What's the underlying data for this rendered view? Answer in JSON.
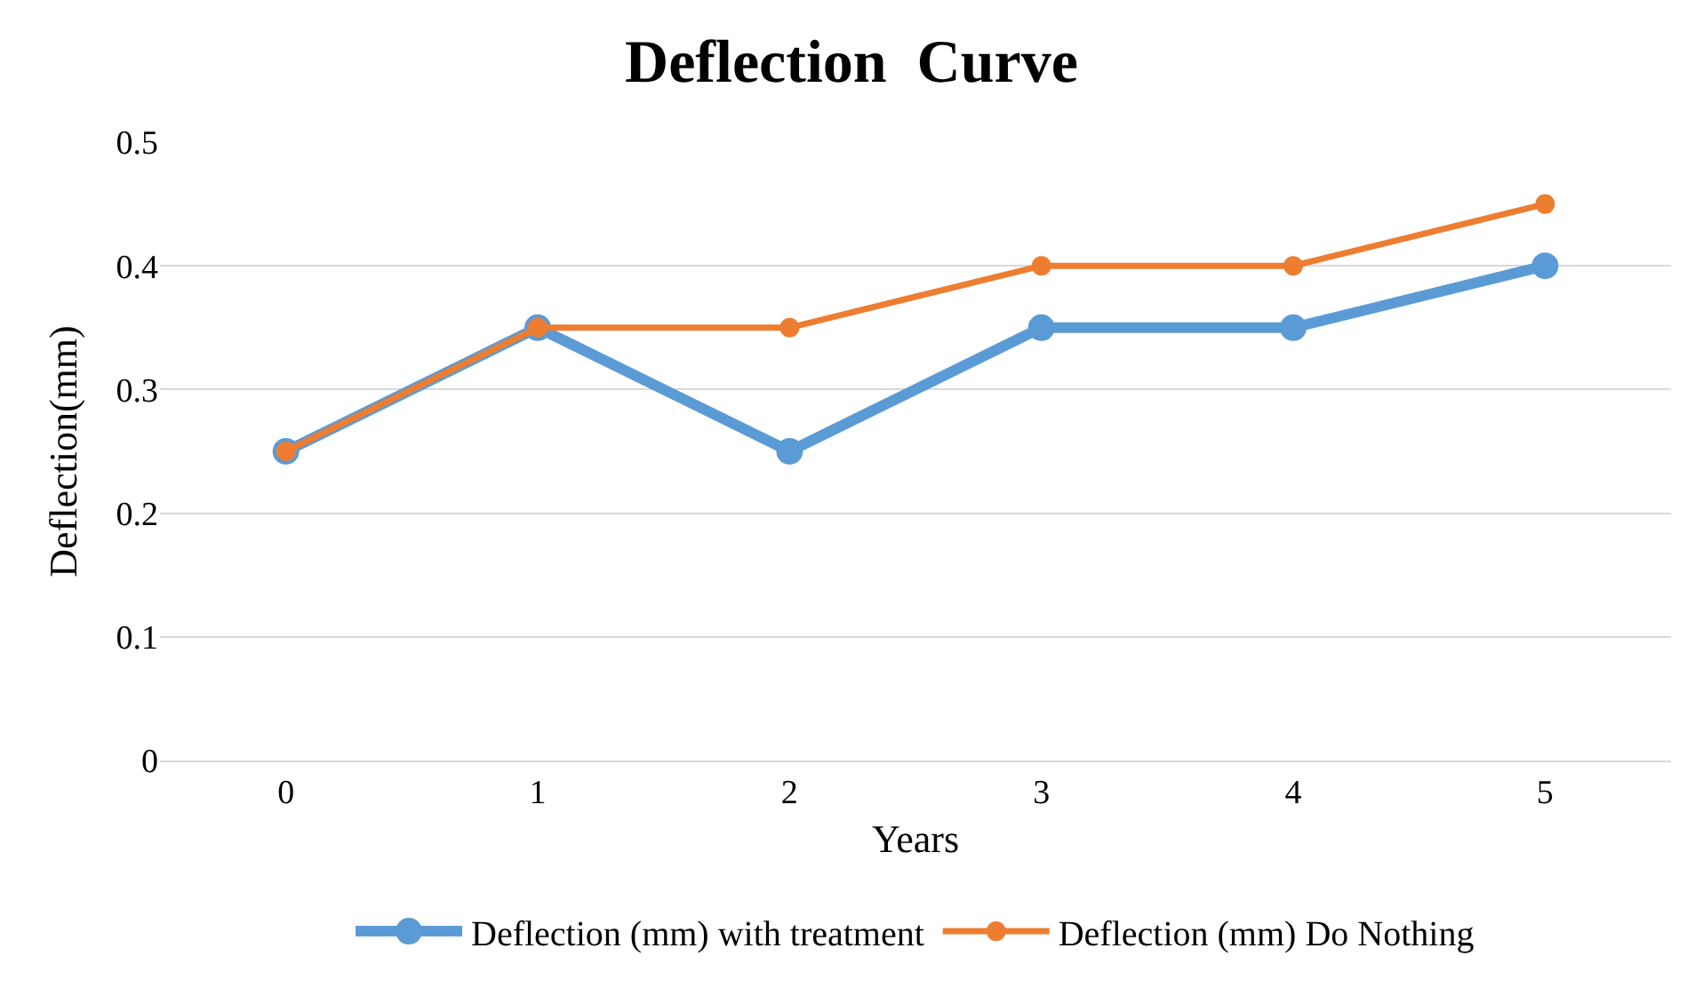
{
  "chart_data": {
    "type": "line",
    "title": "Deflection  Curve",
    "xlabel": "Years",
    "ylabel": "Deflection(mm)",
    "categories": [
      "0",
      "1",
      "2",
      "3",
      "4",
      "5"
    ],
    "series": [
      {
        "name": "Deflection (mm) with treatment",
        "color": "#5b9bd5",
        "values": [
          0.25,
          0.35,
          0.25,
          0.35,
          0.35,
          0.4
        ]
      },
      {
        "name": "Deflection (mm) Do Nothing",
        "color": "#ed7d31",
        "values": [
          0.25,
          0.35,
          0.35,
          0.4,
          0.4,
          0.45
        ]
      }
    ],
    "ylim": [
      0,
      0.5
    ],
    "yticks": [
      0,
      0.1,
      0.2,
      0.3,
      0.4,
      0.5
    ],
    "grid": "y",
    "legend": "bottom",
    "marker": "circle",
    "line_style": "solid"
  }
}
